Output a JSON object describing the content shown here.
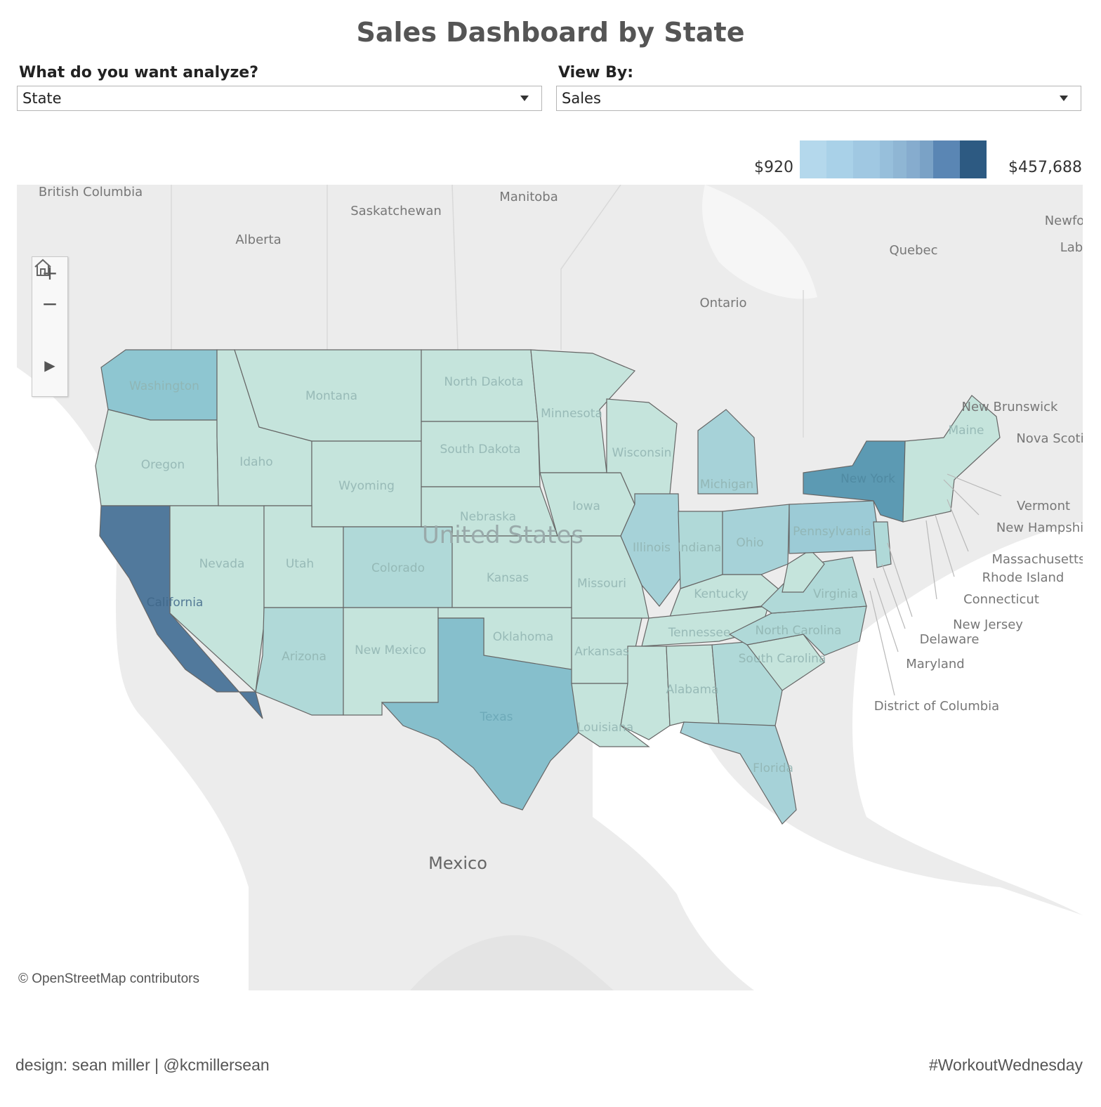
{
  "title": "Sales Dashboard by State",
  "params": {
    "analyze": {
      "label": "What do you want analyze?",
      "value": "State"
    },
    "view_by": {
      "label": "View By:",
      "value": "Sales"
    }
  },
  "legend": {
    "min": "$920",
    "max": "$457,688",
    "colors": [
      "#b4d8ec",
      "#b4d8ec",
      "#a9d1e8",
      "#a9d1e8",
      "#a0c8e2",
      "#a0c8e2",
      "#97bfdb",
      "#8fb6d4",
      "#86acce",
      "#7aa2c6",
      "#5a86b4",
      "#5a86b4",
      "#2d5a82",
      "#2d5a82"
    ]
  },
  "map": {
    "attribution": "© OpenStreetMap contributors",
    "controls": {
      "zoom_in": "+",
      "zoom_out": "−",
      "play": "▶"
    },
    "icons": {
      "home": "home-icon",
      "play": "play-icon"
    },
    "country_labels": {
      "british_columbia": "British Columbia",
      "alberta": "Alberta",
      "saskatchewan": "Saskatchewan",
      "manitoba": "Manitoba",
      "ontario": "Ontario",
      "quebec": "Quebec",
      "newfoundland": "Newfo",
      "labrador": "Lab",
      "new_brunswick": "New Brunswick",
      "nova_scotia": "Nova Scotia",
      "united_states": "United States",
      "mexico": "Mexico"
    },
    "states": {
      "washington": "Washington",
      "oregon": "Oregon",
      "california": "California",
      "nevada": "Nevada",
      "idaho": "Idaho",
      "montana": "Montana",
      "wyoming": "Wyoming",
      "utah": "Utah",
      "arizona": "Arizona",
      "colorado": "Colorado",
      "new_mexico": "New Mexico",
      "north_dakota": "North Dakota",
      "south_dakota": "South Dakota",
      "nebraska": "Nebraska",
      "kansas": "Kansas",
      "oklahoma": "Oklahoma",
      "texas": "Texas",
      "minnesota": "Minnesota",
      "iowa": "Iowa",
      "missouri": "Missouri",
      "arkansas": "Arkansas",
      "louisiana": "Louisiana",
      "wisconsin": "Wisconsin",
      "illinois": "Illinois",
      "michigan": "Michigan",
      "indiana": "Indiana",
      "ohio": "Ohio",
      "kentucky": "Kentucky",
      "tennessee": "Tennessee",
      "mississippi": "",
      "alabama": "Alabama",
      "georgia": "",
      "florida": "Florida",
      "south_carolina": "South Carolina",
      "north_carolina": "North Carolina",
      "virginia": "Virginia",
      "west_virginia": "",
      "pennsylvania": "Pennsylvania",
      "new_york": "New York",
      "maine": "Maine"
    },
    "callouts": {
      "vermont": "Vermont",
      "new_hampshire": "New Hampshi",
      "massachusetts": "Massachusetts",
      "rhode_island": "Rhode Island",
      "connecticut": "Connecticut",
      "new_jersey": "New Jersey",
      "delaware": "Delaware",
      "maryland": "Maryland",
      "district_of_columbia": "District of Columbia"
    },
    "fills": {
      "light": "#c5e4dc",
      "light2": "#bfe1da",
      "mid": "#b0d9d8",
      "mid2": "#a6d2d8",
      "med": "#9ccbd6",
      "texas": "#86bfcc",
      "washington": "#8ec6d1",
      "ny": "#5c9ab3",
      "ca": "#51799c"
    }
  },
  "footer": {
    "left": "design: sean miller | @kcmillersean",
    "right": "#WorkoutWednesday"
  }
}
